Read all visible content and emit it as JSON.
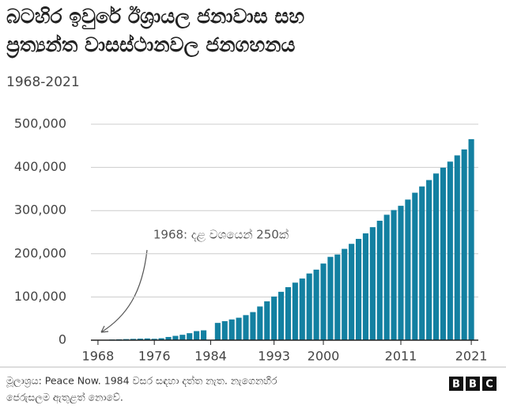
{
  "chart_data": {
    "type": "bar",
    "title": [
      "බටහිර ඉවුරේ ඊශ්‍රායල ජනාවාස සහ",
      "ප්‍රත්‍යන්ත වාසස්ථානවල ජනගහනය"
    ],
    "subtitle": "1968-2021",
    "annotation": "1968: දළ වශයෙන් 250ක්",
    "source": [
      "මූලාශ්‍රය: Peace Now. 1984 වසර සඳහා දත්ත නැත. නැගෙනහිර",
      "ජෙරුසලම ඇතුළත් නොවේ."
    ],
    "logo": [
      "B",
      "B",
      "C"
    ],
    "color": "#1380a1",
    "x": [
      1968,
      1969,
      1970,
      1971,
      1972,
      1973,
      1974,
      1975,
      1976,
      1977,
      1978,
      1979,
      1980,
      1981,
      1982,
      1983,
      1984,
      1985,
      1986,
      1987,
      1988,
      1989,
      1990,
      1991,
      1992,
      1993,
      1994,
      1995,
      1996,
      1997,
      1998,
      1999,
      2000,
      2001,
      2002,
      2003,
      2004,
      2005,
      2006,
      2007,
      2008,
      2009,
      2010,
      2011,
      2012,
      2013,
      2014,
      2015,
      2016,
      2017,
      2018,
      2019,
      2020,
      2021
    ],
    "values": [
      250,
      400,
      1500,
      2000,
      2500,
      3000,
      3500,
      4000,
      3200,
      4400,
      7400,
      10000,
      12500,
      16200,
      21000,
      22800,
      null,
      40000,
      44000,
      48000,
      52000,
      58000,
      65000,
      78000,
      90000,
      101000,
      112000,
      122700,
      133200,
      142700,
      154400,
      163300,
      177400,
      192900,
      198300,
      211400,
      223000,
      234500,
      247300,
      261600,
      276500,
      290400,
      301200,
      311100,
      325500,
      341400,
      355900,
      370700,
      385900,
      399300,
      413400,
      427800,
      441600,
      465400
    ],
    "xlim": [
      1967,
      2022
    ],
    "xticks": [
      1968,
      1976,
      1984,
      1993,
      2000,
      2011,
      2021
    ],
    "ylim": [
      0,
      500000
    ],
    "yticks": [
      0,
      {
        "value": 100000,
        "label": "100,000"
      },
      {
        "value": 200000,
        "label": "200,000"
      },
      {
        "value": 300000,
        "label": "300,000"
      },
      {
        "value": 400000,
        "label": "400,000"
      },
      {
        "value": 500000,
        "label": "500,000"
      }
    ],
    "grid": true
  }
}
